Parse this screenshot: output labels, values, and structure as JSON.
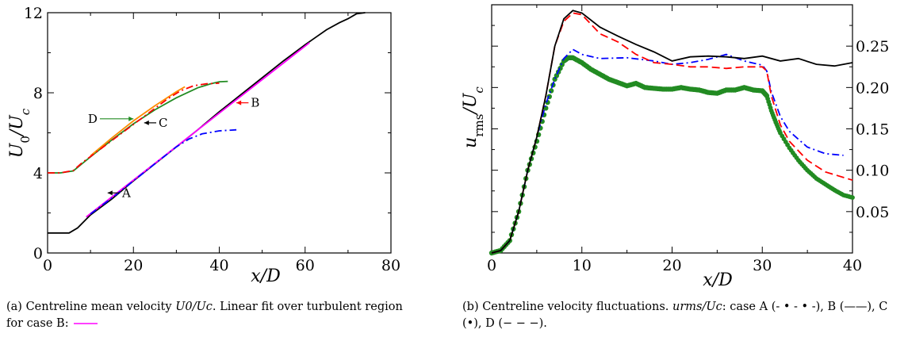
{
  "chart_data": [
    {
      "type": "line",
      "panel": "a",
      "xlabel": "x/D",
      "ylabel": "U0/Uc",
      "xlim": [
        0,
        80
      ],
      "ylim": [
        0,
        12
      ],
      "xticks": [
        "0",
        "20",
        "40",
        "60",
        "80"
      ],
      "yticks": [
        "0",
        "4",
        "8",
        "12"
      ],
      "grid": false,
      "series": [
        {
          "key": "B",
          "color": "#000000",
          "dash": "solid",
          "x": [
            0,
            5,
            7,
            10,
            15,
            20,
            25,
            30,
            35,
            40,
            45,
            50,
            55,
            60,
            62,
            65,
            68,
            70,
            72,
            74
          ],
          "y": [
            1.0,
            1.0,
            1.25,
            1.9,
            2.7,
            3.6,
            4.45,
            5.3,
            6.15,
            7.05,
            7.9,
            8.75,
            9.6,
            10.4,
            10.7,
            11.15,
            11.5,
            11.7,
            11.95,
            12.0
          ]
        },
        {
          "key": "fit",
          "color": "#ff00ff",
          "dash": "solid",
          "x": [
            9,
            61
          ],
          "y": [
            1.8,
            10.5
          ]
        },
        {
          "key": "A",
          "color": "#0000ff",
          "dash": "dashdot",
          "x": [
            10,
            15,
            20,
            25,
            30,
            33,
            36,
            40,
            44
          ],
          "y": [
            1.95,
            2.75,
            3.6,
            4.45,
            5.3,
            5.7,
            5.95,
            6.1,
            6.15
          ]
        },
        {
          "key": "C",
          "color": "#228b22",
          "dash": "solid",
          "x": [
            0,
            3,
            6,
            8,
            10,
            15,
            20,
            25,
            30,
            35,
            38,
            40,
            42
          ],
          "y": [
            4.0,
            4.0,
            4.1,
            4.45,
            4.8,
            5.65,
            6.45,
            7.15,
            7.75,
            8.25,
            8.45,
            8.55,
            8.57
          ]
        },
        {
          "key": "C-orange",
          "color": "#ff8c00",
          "dash": "solid",
          "x": [
            10,
            15,
            20,
            25,
            30,
            32
          ],
          "y": [
            4.85,
            5.75,
            6.6,
            7.35,
            8.05,
            8.3
          ]
        },
        {
          "key": "D",
          "color": "#ff0000",
          "dash": "dashdot",
          "x": [
            0,
            3,
            6,
            8,
            28,
            31,
            34,
            37,
            40
          ],
          "y": [
            4.0,
            4.0,
            4.12,
            4.5,
            7.7,
            8.1,
            8.35,
            8.45,
            8.48
          ]
        }
      ],
      "annotations": [
        {
          "text": "A",
          "x": 17,
          "y": 3.0,
          "arrow_to": [
            14,
            3.0
          ],
          "color": "#000000"
        },
        {
          "text": "B",
          "x": 47,
          "y": 7.5,
          "arrow_to": [
            44,
            7.5
          ],
          "color": "#ff0000"
        },
        {
          "text": "C",
          "x": 25.5,
          "y": 6.5,
          "arrow_to": [
            22.5,
            6.5
          ],
          "color": "#000000"
        },
        {
          "text": "D",
          "x": 12,
          "y": 6.7,
          "arrow_to": [
            20,
            6.7
          ],
          "color": "#228b22"
        }
      ]
    },
    {
      "type": "line",
      "panel": "b",
      "xlabel": "x/D",
      "ylabel": "u_rms/U_c",
      "xlim": [
        0,
        40
      ],
      "ylim": [
        0,
        0.3
      ],
      "xticks": [
        "0",
        "10",
        "20",
        "30",
        "40"
      ],
      "yticks": [
        "0.05",
        "0.10",
        "0.15",
        "0.20",
        "0.25"
      ],
      "grid": false,
      "series": [
        {
          "case": "A",
          "color": "#0000ff",
          "dash": "dashdot",
          "x": [
            0,
            1,
            2,
            3,
            4,
            5,
            6,
            7,
            8,
            9,
            10,
            12,
            15,
            18,
            20,
            22,
            24,
            26,
            28,
            30,
            30.5,
            31,
            32,
            33,
            35,
            37,
            39
          ],
          "y": [
            0.0,
            0.003,
            0.015,
            0.05,
            0.1,
            0.14,
            0.18,
            0.21,
            0.235,
            0.246,
            0.24,
            0.235,
            0.236,
            0.232,
            0.228,
            0.23,
            0.234,
            0.24,
            0.232,
            0.227,
            0.22,
            0.195,
            0.165,
            0.147,
            0.128,
            0.12,
            0.118
          ]
        },
        {
          "case": "B",
          "color": "#000000",
          "dash": "solid",
          "x": [
            0,
            1,
            2,
            3,
            4,
            5,
            6,
            7,
            8,
            9,
            10,
            12,
            14,
            16,
            18,
            20,
            22,
            24,
            26,
            28,
            30,
            32,
            34,
            36,
            38,
            40
          ],
          "y": [
            0.0,
            0.003,
            0.015,
            0.05,
            0.1,
            0.14,
            0.19,
            0.25,
            0.283,
            0.293,
            0.29,
            0.273,
            0.262,
            0.252,
            0.243,
            0.232,
            0.237,
            0.238,
            0.237,
            0.235,
            0.238,
            0.232,
            0.235,
            0.228,
            0.226,
            0.23
          ]
        },
        {
          "case": "C",
          "color": "#228b22",
          "dash": "markers",
          "x": [
            0,
            1,
            2,
            3,
            4,
            5,
            6,
            7,
            8,
            8.5,
            9,
            10,
            11,
            12,
            13,
            14,
            15,
            16,
            17,
            18,
            19,
            20,
            21,
            22,
            23,
            24,
            25,
            26,
            27,
            28,
            29,
            30,
            30.5,
            31,
            31.5,
            32,
            33,
            34,
            35,
            36,
            37,
            38,
            39,
            40
          ],
          "y": [
            0.0,
            0.003,
            0.015,
            0.05,
            0.1,
            0.135,
            0.175,
            0.21,
            0.232,
            0.236,
            0.236,
            0.23,
            0.222,
            0.216,
            0.21,
            0.206,
            0.202,
            0.205,
            0.2,
            0.199,
            0.198,
            0.198,
            0.2,
            0.198,
            0.197,
            0.194,
            0.193,
            0.197,
            0.197,
            0.2,
            0.197,
            0.196,
            0.19,
            0.172,
            0.158,
            0.145,
            0.127,
            0.112,
            0.1,
            0.09,
            0.083,
            0.076,
            0.07,
            0.067
          ]
        },
        {
          "case": "D",
          "color": "#ff0000",
          "dash": "dashed",
          "x": [
            0,
            1,
            2,
            3,
            4,
            5,
            6,
            7,
            8,
            9,
            10,
            12,
            14,
            16,
            18,
            20,
            22,
            24,
            26,
            28,
            30,
            30.5,
            31,
            32,
            33,
            35,
            37,
            40
          ],
          "y": [
            0.0,
            0.003,
            0.015,
            0.05,
            0.1,
            0.14,
            0.19,
            0.25,
            0.28,
            0.29,
            0.288,
            0.265,
            0.255,
            0.24,
            0.23,
            0.228,
            0.225,
            0.225,
            0.223,
            0.225,
            0.225,
            0.22,
            0.19,
            0.155,
            0.135,
            0.112,
            0.098,
            0.088
          ]
        }
      ]
    }
  ],
  "captions": {
    "a": {
      "prefix": "(a) Centreline mean velocity ",
      "math": "U0/Uc",
      "suffix": ". Linear fit over turbulent region for case B: "
    },
    "b": {
      "prefix": "(b) Centreline velocity fluctuations. ",
      "math": "urms/Uc",
      "suffix": ": case A (- • - • -), B (——), C (•), D (− − −)."
    }
  }
}
